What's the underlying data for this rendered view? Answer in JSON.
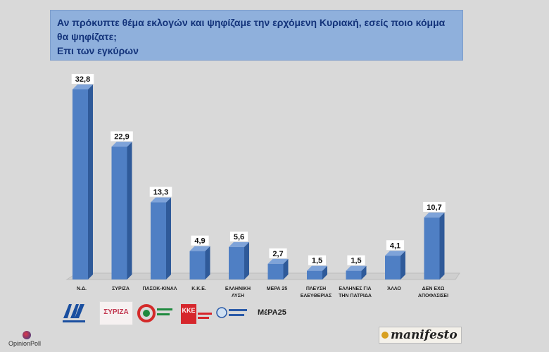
{
  "title": {
    "line1": "Αν πρόκυπτε θέμα εκλογών και ψηφίζαμε την ερχόμενη Κυριακή, εσείς ποιο κόμμα",
    "line2": "θα ψηφίζατε;",
    "line3": "Επι των εγκύρων"
  },
  "colors": {
    "bar_front": "#4f7fc4",
    "bar_side": "#2f5a99",
    "bar_top": "#7ea3d9",
    "title_bg": "#8fb0dc",
    "title_text": "#13337a"
  },
  "chart_data": {
    "type": "bar",
    "categories": [
      [
        "Ν.Δ."
      ],
      [
        "ΣΥΡΙΖΑ"
      ],
      [
        "ΠΑΣΟΚ-ΚΙΝΑΛ"
      ],
      [
        "Κ.Κ.Ε."
      ],
      [
        "ΕΛΛΗΝΙΚΗ",
        "ΛΥΣΗ"
      ],
      [
        "ΜΕΡΑ 25"
      ],
      [
        "ΠΛΕΥΣΗ",
        "ΕΛΕΥΘΕΡΙΑΣ"
      ],
      [
        "ΕΛΛΗΝΕΣ ΓΙΑ",
        "ΤΗΝ ΠΑΤΡΙΔΑ"
      ],
      [
        "ΆΛΛΟ"
      ],
      [
        "ΔΕΝ ΕΧΩ",
        "ΑΠΟΦΑΣΙΣΕΙ"
      ]
    ],
    "values": [
      32.8,
      22.9,
      13.3,
      4.9,
      5.6,
      2.7,
      1.5,
      1.5,
      4.1,
      10.7
    ],
    "labels": [
      "32,8",
      "22,9",
      "13,3",
      "4,9",
      "5,6",
      "2,7",
      "1,5",
      "1,5",
      "4,1",
      "10,7"
    ],
    "ylim": [
      0,
      35
    ],
    "grid": false,
    "legend": "none"
  },
  "logos": {
    "syriza": "ΣΥΡΙΖΑ",
    "kke": "ΚΚΕ",
    "mera": "ΜέΡΑ25",
    "opinion": "OpinionPoll",
    "manifesto": "manifesto"
  }
}
